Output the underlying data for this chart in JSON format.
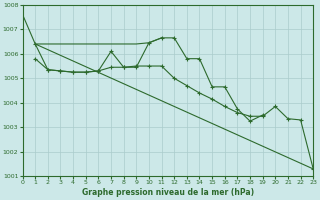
{
  "title": "Graphe pression niveau de la mer (hPa)",
  "bg_color": "#cce8e8",
  "grid_color": "#aacccc",
  "line_color": "#2d6a2d",
  "ylim": [
    1001,
    1008
  ],
  "xlim": [
    0,
    23
  ],
  "yticks": [
    1001,
    1002,
    1003,
    1004,
    1005,
    1006,
    1007,
    1008
  ],
  "xticks": [
    0,
    1,
    2,
    3,
    4,
    5,
    6,
    7,
    8,
    9,
    10,
    11,
    12,
    13,
    14,
    15,
    16,
    17,
    18,
    19,
    20,
    21,
    22,
    23
  ],
  "series": [
    {
      "x": [
        0,
        1,
        2,
        3,
        4,
        5,
        6,
        7,
        8,
        9,
        10,
        11,
        12,
        13,
        14,
        15,
        16,
        17,
        18,
        19,
        20,
        21,
        22,
        23
      ],
      "y": [
        1007.6,
        1006.4,
        1006.4,
        1006.4,
        1006.4,
        1006.4,
        1006.4,
        1006.4,
        1006.4,
        1006.4,
        1006.45,
        1006.65,
        null,
        null,
        null,
        null,
        null,
        null,
        null,
        null,
        null,
        null,
        null,
        null
      ],
      "has_markers": false
    },
    {
      "x": [
        1,
        2,
        3,
        4,
        5,
        6,
        7,
        8,
        9,
        10,
        11,
        12,
        13,
        14,
        15,
        16,
        17,
        18,
        19,
        20,
        21,
        22,
        23
      ],
      "y": [
        1005.8,
        1005.35,
        1005.3,
        1005.25,
        1005.25,
        1005.3,
        1006.1,
        1005.45,
        1005.45,
        1006.45,
        1006.65,
        1006.65,
        1005.8,
        1005.8,
        1004.65,
        1004.65,
        1003.75,
        1003.25,
        1003.5,
        null,
        null,
        null,
        null
      ],
      "has_markers": true
    },
    {
      "x": [
        1,
        2,
        3,
        4,
        5,
        6,
        7,
        8,
        9,
        10,
        11,
        12,
        13,
        14,
        15,
        16,
        17,
        18,
        19,
        20,
        21,
        22,
        23
      ],
      "y": [
        1006.4,
        1005.35,
        1005.3,
        1005.25,
        1005.25,
        1005.3,
        1005.45,
        1005.45,
        1005.5,
        1005.5,
        1005.5,
        1005.0,
        1004.7,
        1004.4,
        1004.15,
        1003.85,
        1003.6,
        1003.45,
        1003.45,
        1003.85,
        1003.35,
        1003.3,
        1001.3
      ],
      "has_markers": true
    },
    {
      "x": [
        1,
        23
      ],
      "y": [
        1006.4,
        1001.3
      ],
      "has_markers": false
    }
  ]
}
